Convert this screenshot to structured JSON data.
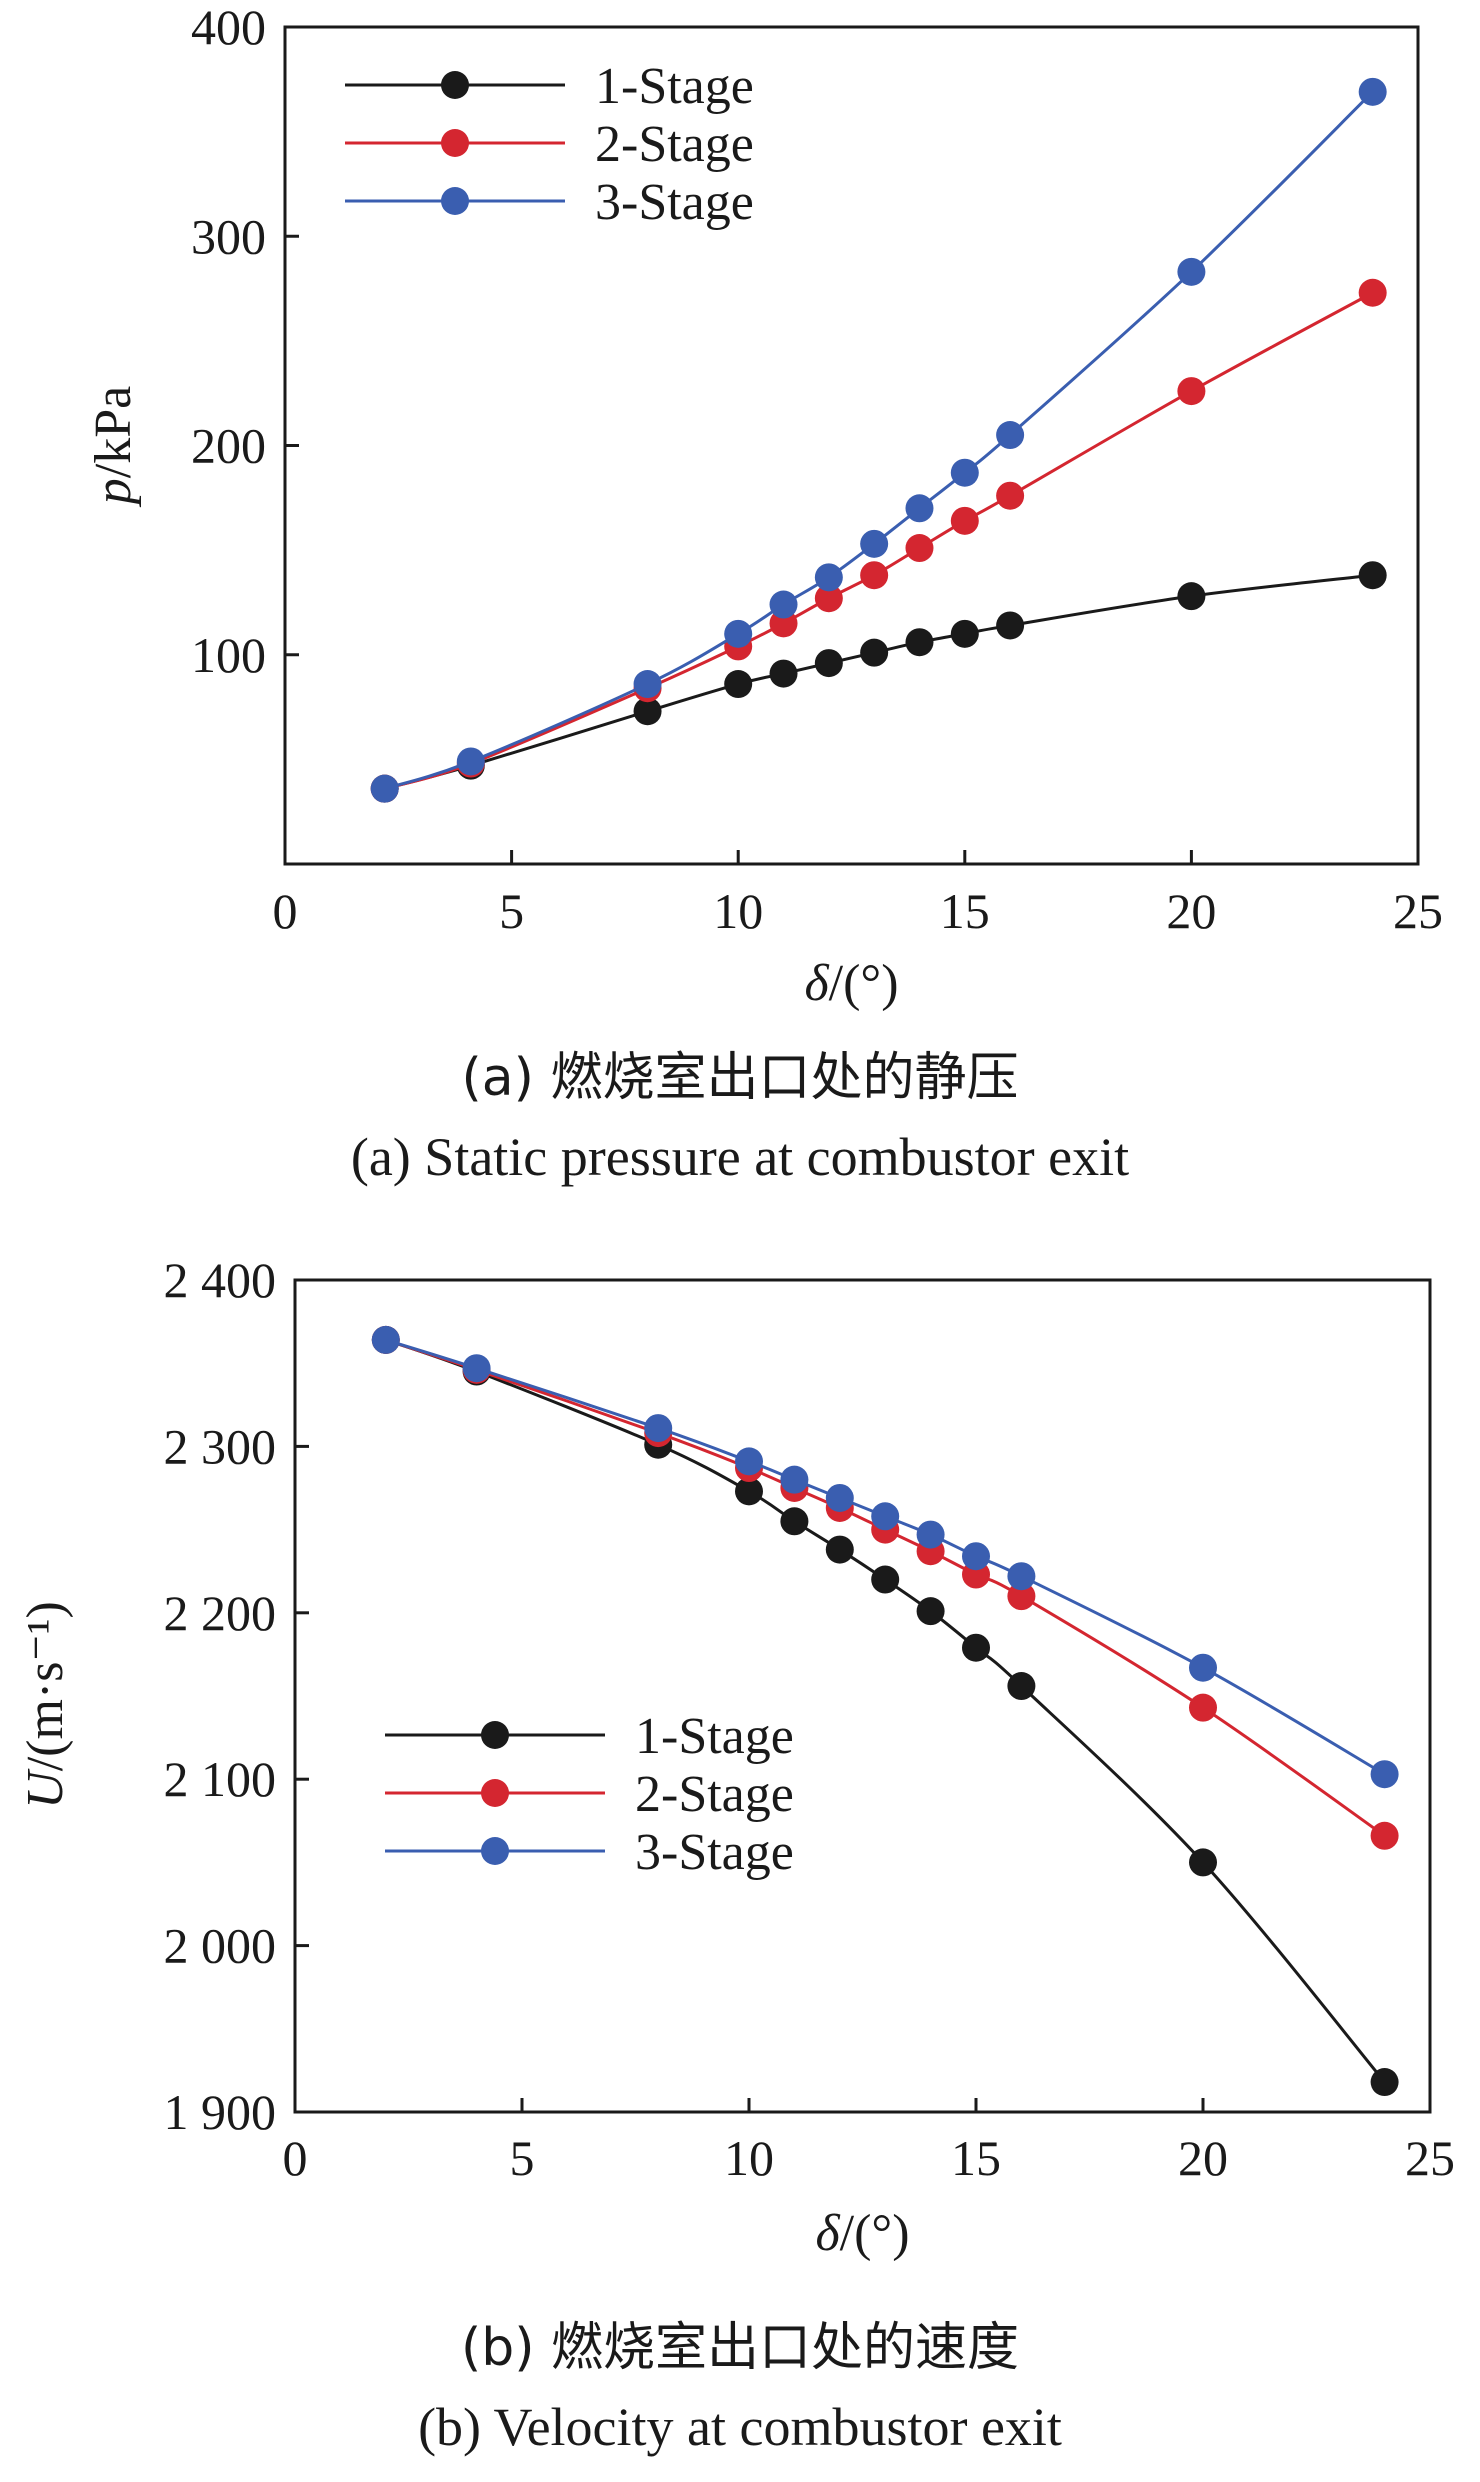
{
  "chart_data": [
    {
      "type": "line",
      "ylabel_italic": "p",
      "ylabel_rest": "/kPa",
      "xlabel_italic": "δ",
      "xlabel_rest": "/(°)",
      "xlim": [
        0,
        25
      ],
      "ylim": [
        0,
        400
      ],
      "xticks": [
        0,
        5,
        10,
        15,
        20,
        25
      ],
      "xtick_labels": [
        "0",
        "5",
        "10",
        "15",
        "20",
        "25"
      ],
      "yticks": [
        100,
        200,
        300,
        400
      ],
      "ytick_labels": [
        "100",
        "200",
        "300",
        "400"
      ],
      "legend_position": "top-left",
      "caption_cn": "(a) 燃烧室出口处的静压",
      "caption_en": "(a) Static pressure at combustor exit",
      "grid": false,
      "series": [
        {
          "name": "1-Stage",
          "color": "#1a1a1a",
          "x": [
            2.2,
            4.1,
            8,
            10,
            11,
            12,
            13,
            14,
            15,
            16,
            20,
            24
          ],
          "y": [
            36,
            47,
            73,
            86,
            91,
            96,
            101,
            106,
            110,
            114,
            128,
            138
          ]
        },
        {
          "name": "2-Stage",
          "color": "#d42630",
          "x": [
            2.2,
            4.1,
            8,
            10,
            11,
            12,
            13,
            14,
            15,
            16,
            20,
            24
          ],
          "y": [
            36,
            48,
            84,
            104,
            115,
            127,
            138,
            151,
            164,
            176,
            226,
            273
          ]
        },
        {
          "name": "3-Stage",
          "color": "#3a5eb0",
          "x": [
            2.2,
            4.1,
            8,
            10,
            11,
            12,
            13,
            14,
            15,
            16,
            20,
            24
          ],
          "y": [
            36,
            49,
            86,
            110,
            124,
            137,
            153,
            170,
            187,
            205,
            283,
            369
          ]
        }
      ]
    },
    {
      "type": "line",
      "ylabel_italic": "U",
      "ylabel_rest": "/(m·s⁻¹)",
      "xlabel_italic": "δ",
      "xlabel_rest": "/(°)",
      "xlim": [
        0,
        25
      ],
      "ylim": [
        1900,
        2400
      ],
      "xticks": [
        0,
        5,
        10,
        15,
        20,
        25
      ],
      "xtick_labels": [
        "0",
        "5",
        "10",
        "15",
        "20",
        "25"
      ],
      "yticks": [
        1900,
        2000,
        2100,
        2200,
        2300,
        2400
      ],
      "ytick_labels": [
        "1 900",
        "2 000",
        "2 100",
        "2 200",
        "2 300",
        "2 400"
      ],
      "legend_position": "center-left",
      "caption_cn": "(b) 燃烧室出口处的速度",
      "caption_en": "(b) Velocity at combustor exit",
      "grid": false,
      "series": [
        {
          "name": "1-Stage",
          "color": "#1a1a1a",
          "x": [
            2,
            4,
            8,
            10,
            11,
            12,
            13,
            14,
            15,
            16,
            20,
            24
          ],
          "y": [
            2364,
            2345,
            2301,
            2273,
            2255,
            2238,
            2220,
            2201,
            2179,
            2156,
            2050,
            1918
          ]
        },
        {
          "name": "2-Stage",
          "color": "#d42630",
          "x": [
            2,
            4,
            8,
            10,
            11,
            12,
            13,
            14,
            15,
            16,
            20,
            24
          ],
          "y": [
            2364,
            2346,
            2308,
            2287,
            2275,
            2263,
            2250,
            2237,
            2223,
            2210,
            2143,
            2066
          ]
        },
        {
          "name": "3-Stage",
          "color": "#3a5eb0",
          "x": [
            2,
            4,
            8,
            10,
            11,
            12,
            13,
            14,
            15,
            16,
            20,
            24
          ],
          "y": [
            2364,
            2347,
            2311,
            2291,
            2280,
            2269,
            2258,
            2247,
            2234,
            2222,
            2167,
            2103
          ]
        }
      ]
    }
  ]
}
